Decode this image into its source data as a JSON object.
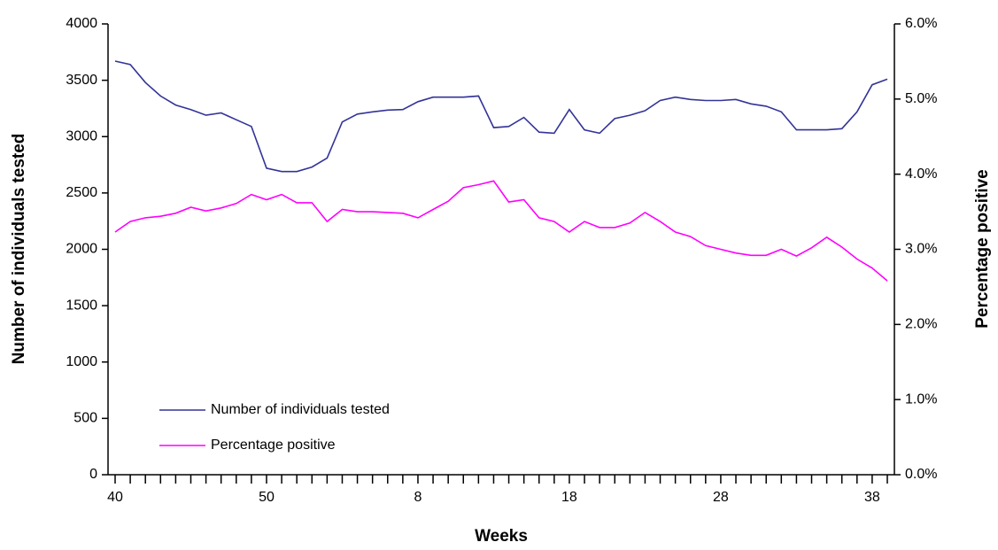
{
  "chart_data": {
    "type": "line",
    "xlabel": "Weeks",
    "ylabel": "Number of individuals tested",
    "y2label": "Percentage positive",
    "categories": [
      "40",
      null,
      null,
      null,
      null,
      null,
      null,
      null,
      null,
      null,
      "50",
      null,
      null,
      null,
      null,
      null,
      null,
      null,
      null,
      null,
      "8",
      null,
      null,
      null,
      null,
      null,
      null,
      null,
      null,
      null,
      "18",
      null,
      null,
      null,
      null,
      null,
      null,
      null,
      null,
      null,
      "28",
      null,
      null,
      null,
      null,
      null,
      null,
      null,
      null,
      null,
      "38",
      null
    ],
    "series": [
      {
        "name": "Number of individuals tested",
        "color": "#333399",
        "axis": "y",
        "values": [
          3670,
          3640,
          3480,
          3360,
          3280,
          3240,
          3190,
          3210,
          3150,
          3090,
          2720,
          2690,
          2690,
          2730,
          2810,
          3130,
          3200,
          3220,
          3235,
          3240,
          3310,
          3350,
          3350,
          3350,
          3360,
          3080,
          3090,
          3170,
          3040,
          3030,
          3240,
          3060,
          3030,
          3160,
          3190,
          3230,
          3320,
          3350,
          3330,
          3320,
          3320,
          3330,
          3290,
          3270,
          3220,
          3060,
          3060,
          3060,
          3070,
          3220,
          3460,
          3510
        ]
      },
      {
        "name": "Percentage positive",
        "color": "#ff00ff",
        "axis": "y2",
        "values": [
          3.23,
          3.37,
          3.42,
          3.44,
          3.48,
          3.56,
          3.51,
          3.55,
          3.61,
          3.73,
          3.66,
          3.73,
          3.62,
          3.62,
          3.37,
          3.53,
          3.5,
          3.5,
          3.49,
          3.48,
          3.42,
          3.53,
          3.64,
          3.82,
          3.86,
          3.91,
          3.63,
          3.66,
          3.42,
          3.37,
          3.23,
          3.37,
          3.29,
          3.29,
          3.35,
          3.49,
          3.37,
          3.23,
          3.17,
          3.05,
          3.0,
          2.95,
          2.92,
          2.92,
          3.0,
          2.91,
          3.02,
          3.16,
          3.03,
          2.87,
          2.75,
          2.58
        ]
      }
    ],
    "ylim": [
      0,
      4000
    ],
    "yticks": [
      0,
      500,
      1000,
      1500,
      2000,
      2500,
      3000,
      3500,
      4000
    ],
    "y2lim": [
      0,
      6
    ],
    "y2ticks": [
      {
        "value": 0,
        "label": "0.0%"
      },
      {
        "value": 1,
        "label": "1.0%"
      },
      {
        "value": 2,
        "label": "2.0%"
      },
      {
        "value": 3,
        "label": "3.0%"
      },
      {
        "value": 4,
        "label": "4.0%"
      },
      {
        "value": 5,
        "label": "5.0%"
      },
      {
        "value": 6,
        "label": "6.0%"
      }
    ],
    "legend": "lower left",
    "grid": false
  }
}
